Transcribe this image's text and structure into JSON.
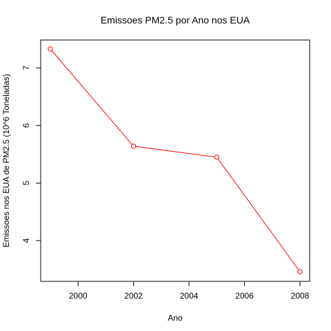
{
  "chart_data": {
    "type": "line",
    "title": "Emissoes PM2.5 por Ano nos EUA",
    "xlabel": "Ano",
    "ylabel": "Emissoes nos EUA de PM2.5 (10^6 Toneladas)",
    "x": [
      1999,
      2002,
      2005,
      2008
    ],
    "series": [
      {
        "values": [
          7.33,
          5.64,
          5.45,
          3.46
        ]
      }
    ],
    "xlim": [
      1999,
      2008
    ],
    "ylim": [
      3.46,
      7.33
    ],
    "xticks": [
      2000,
      2002,
      2004,
      2006,
      2008
    ],
    "xtick_labels": [
      "2000",
      "2002",
      "2004",
      "2006",
      "2008"
    ],
    "yticks": [
      4,
      5,
      6,
      7
    ],
    "ytick_labels": [
      "4",
      "5",
      "6",
      "7"
    ],
    "grid": false,
    "markers": "open-circle",
    "color": "#ff0000"
  }
}
